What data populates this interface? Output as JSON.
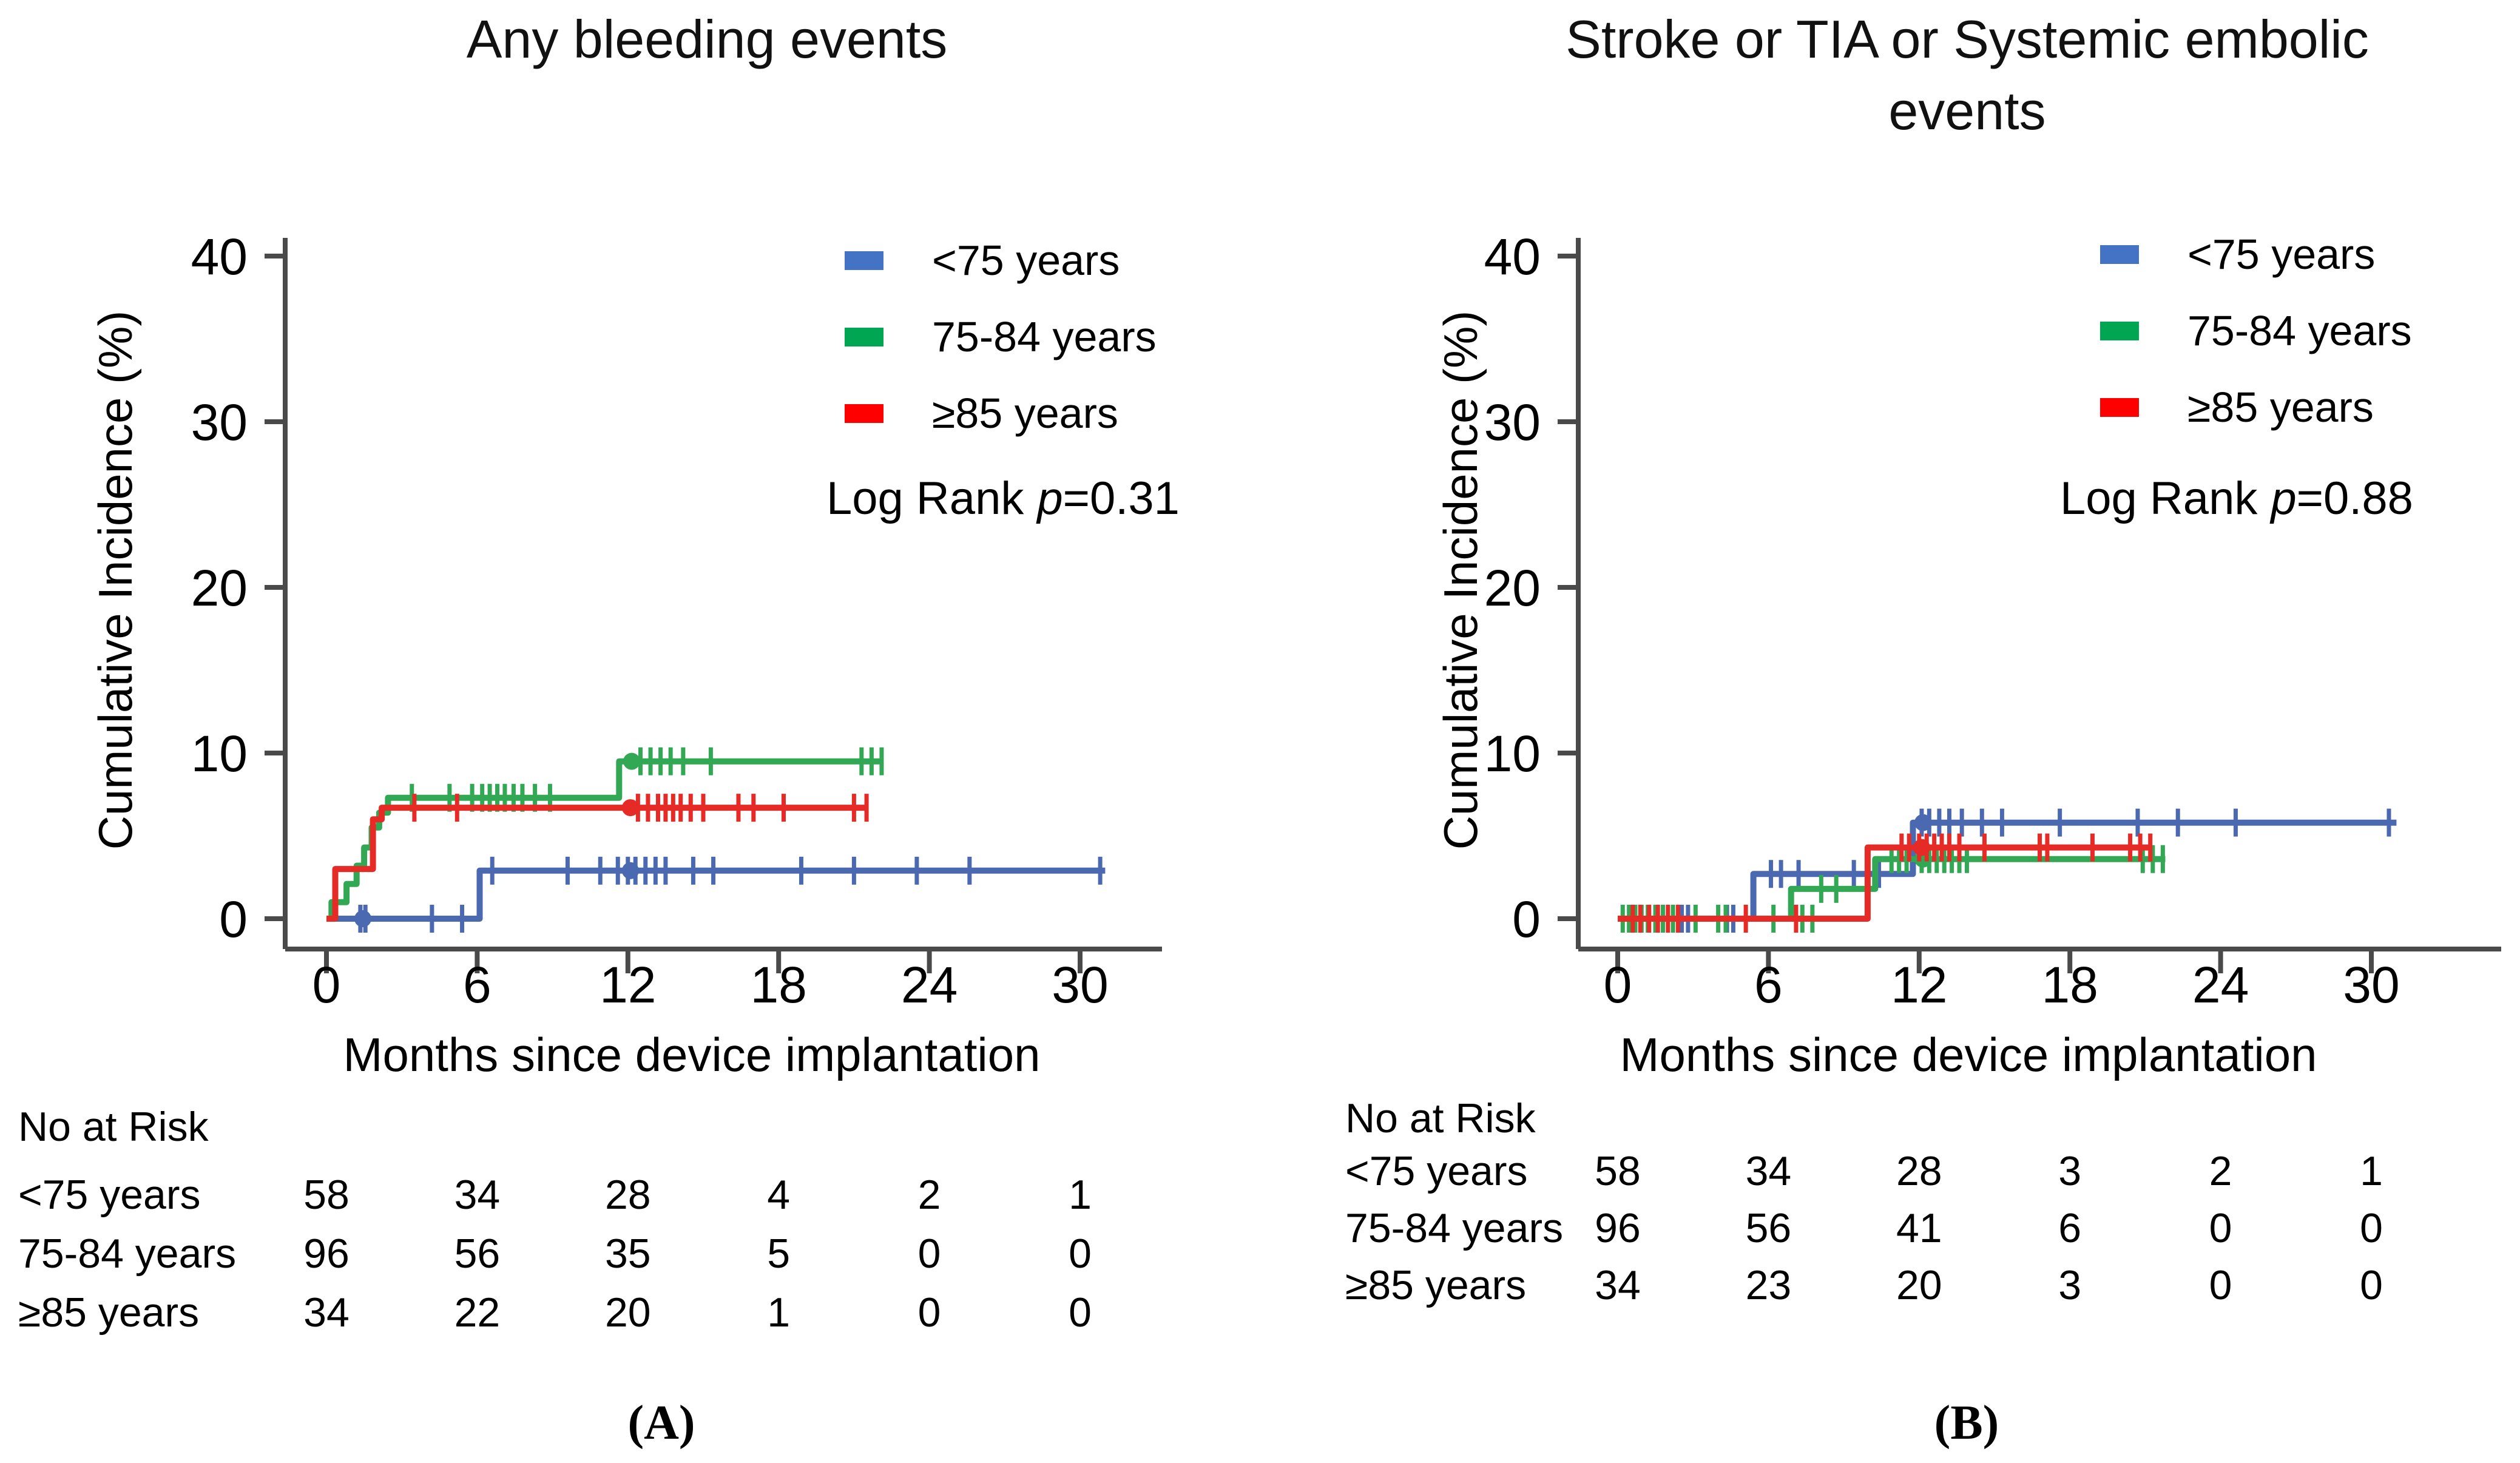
{
  "chart_data": {
    "type": "line",
    "subtype": "kaplan_meier_cumulative_incidence_step",
    "grid": false,
    "panels": [
      {
        "panel_label": "(A)",
        "title_lines": [
          "Any bleeding events"
        ],
        "xlabel": "Months since device implantation",
        "ylabel": "Cumulative Incidence (%)",
        "x_ticks": [
          0,
          6,
          12,
          18,
          24,
          30
        ],
        "y_ticks": [
          0,
          10,
          20,
          30,
          40
        ],
        "xlim": [
          0,
          33
        ],
        "ylim": [
          0,
          43
        ],
        "legend_position": "top-right-inside",
        "log_rank_label": "Log Rank",
        "log_rank_p_symbol": "p",
        "log_rank_value": "=0.31",
        "series": [
          {
            "name": "<75 years",
            "color": "#4b69b1",
            "swatch_color": "#4472C4",
            "steps": [
              [
                0,
                0
              ],
              [
                6.1,
                0
              ],
              [
                6.1,
                2.9
              ],
              [
                31.0,
                2.9
              ]
            ],
            "censors": [
              [
                1.35,
                0
              ],
              [
                1.55,
                0
              ],
              [
                4.2,
                0
              ],
              [
                5.4,
                0
              ],
              [
                6.6,
                2.9
              ],
              [
                9.6,
                2.9
              ],
              [
                10.9,
                2.9
              ],
              [
                11.6,
                2.9
              ],
              [
                12.0,
                2.9
              ],
              [
                12.3,
                2.9
              ],
              [
                12.7,
                2.9
              ],
              [
                13.1,
                2.9
              ],
              [
                13.5,
                2.9
              ],
              [
                14.6,
                2.9
              ],
              [
                15.4,
                2.9
              ],
              [
                18.9,
                2.9
              ],
              [
                21.0,
                2.9
              ],
              [
                23.5,
                2.9
              ],
              [
                25.6,
                2.9
              ],
              [
                30.8,
                2.9
              ]
            ],
            "markers": [
              [
                1.45,
                0
              ],
              [
                12.1,
                2.9
              ]
            ]
          },
          {
            "name": "75-84 years",
            "color": "#33a854",
            "swatch_color": "#00A651",
            "steps": [
              [
                0,
                0
              ],
              [
                0.2,
                0
              ],
              [
                0.2,
                1.0
              ],
              [
                0.8,
                1.0
              ],
              [
                0.8,
                2.1
              ],
              [
                1.2,
                2.1
              ],
              [
                1.2,
                3.2
              ],
              [
                1.5,
                3.2
              ],
              [
                1.5,
                4.3
              ],
              [
                1.8,
                4.3
              ],
              [
                1.8,
                5.5
              ],
              [
                2.1,
                5.5
              ],
              [
                2.1,
                6.4
              ],
              [
                2.45,
                6.4
              ],
              [
                2.45,
                7.3
              ],
              [
                11.65,
                7.3
              ],
              [
                11.65,
                9.5
              ],
              [
                22.1,
                9.5
              ]
            ],
            "censors": [
              [
                3.4,
                7.3
              ],
              [
                4.9,
                7.3
              ],
              [
                5.8,
                7.3
              ],
              [
                6.2,
                7.3
              ],
              [
                6.5,
                7.3
              ],
              [
                6.8,
                7.3
              ],
              [
                7.1,
                7.3
              ],
              [
                7.45,
                7.3
              ],
              [
                7.8,
                7.3
              ],
              [
                8.3,
                7.3
              ],
              [
                8.9,
                7.3
              ],
              [
                12.5,
                9.5
              ],
              [
                12.9,
                9.5
              ],
              [
                13.3,
                9.5
              ],
              [
                13.7,
                9.5
              ],
              [
                14.2,
                9.5
              ],
              [
                15.3,
                9.5
              ],
              [
                21.3,
                9.5
              ],
              [
                21.7,
                9.5
              ],
              [
                22.1,
                9.5
              ]
            ],
            "markers": [
              [
                12.15,
                9.5
              ]
            ]
          },
          {
            "name": "≥85 years",
            "color": "#e62a25",
            "swatch_color": "#FF0000",
            "steps": [
              [
                0,
                0
              ],
              [
                0.35,
                0
              ],
              [
                0.35,
                3.0
              ],
              [
                1.85,
                3.0
              ],
              [
                1.85,
                6.0
              ],
              [
                2.2,
                6.0
              ],
              [
                2.2,
                6.7
              ],
              [
                21.5,
                6.7
              ]
            ],
            "censors": [
              [
                3.5,
                6.7
              ],
              [
                5.2,
                6.7
              ],
              [
                12.4,
                6.7
              ],
              [
                12.8,
                6.7
              ],
              [
                13.2,
                6.7
              ],
              [
                13.5,
                6.7
              ],
              [
                13.8,
                6.7
              ],
              [
                14.1,
                6.7
              ],
              [
                14.5,
                6.7
              ],
              [
                15.0,
                6.7
              ],
              [
                16.4,
                6.7
              ],
              [
                17.0,
                6.7
              ],
              [
                18.2,
                6.7
              ],
              [
                21.0,
                6.7
              ],
              [
                21.5,
                6.7
              ]
            ],
            "markers": [
              [
                12.1,
                6.7
              ]
            ]
          }
        ],
        "risk_table": {
          "title": "No at Risk",
          "time_points": [
            0,
            6,
            12,
            18,
            24,
            30
          ],
          "rows": [
            {
              "label": "<75 years",
              "values": [
                "58",
                "34",
                "28",
                "4",
                "2",
                "1"
              ]
            },
            {
              "label": "75-84 years",
              "values": [
                "96",
                "56",
                "35",
                "5",
                "0",
                "0"
              ]
            },
            {
              "label": "≥85 years",
              "values": [
                "34",
                "22",
                "20",
                "1",
                "0",
                "0"
              ]
            }
          ]
        }
      },
      {
        "panel_label": "(B)",
        "title_lines": [
          "Stroke or TIA or Systemic embolic",
          "events"
        ],
        "xlabel": "Months since device implantation",
        "ylabel": "Cumulative Incidence (%)",
        "x_ticks": [
          0,
          6,
          12,
          18,
          24,
          30
        ],
        "y_ticks": [
          0,
          10,
          20,
          30,
          40
        ],
        "xlim": [
          0,
          33
        ],
        "ylim": [
          0,
          43
        ],
        "legend_position": "top-right-inside",
        "log_rank_label": "Log Rank",
        "log_rank_p_symbol": "p",
        "log_rank_value": "=0.88",
        "series": [
          {
            "name": "<75 years",
            "color": "#4b69b1",
            "swatch_color": "#4472C4",
            "steps": [
              [
                0,
                0
              ],
              [
                5.4,
                0
              ],
              [
                5.4,
                2.7
              ],
              [
                11.75,
                2.7
              ],
              [
                11.75,
                5.8
              ],
              [
                31.0,
                5.8
              ]
            ],
            "censors": [
              [
                2.55,
                0
              ],
              [
                2.8,
                0
              ],
              [
                4.35,
                0
              ],
              [
                4.6,
                0
              ],
              [
                6.1,
                2.7
              ],
              [
                6.5,
                2.7
              ],
              [
                7.2,
                2.7
              ],
              [
                9.4,
                2.7
              ],
              [
                10.4,
                2.7
              ],
              [
                12.1,
                5.8
              ],
              [
                12.4,
                5.8
              ],
              [
                12.8,
                5.8
              ],
              [
                13.2,
                5.8
              ],
              [
                13.7,
                5.8
              ],
              [
                14.5,
                5.8
              ],
              [
                15.3,
                5.8
              ],
              [
                17.6,
                5.8
              ],
              [
                20.7,
                5.8
              ],
              [
                22.3,
                5.8
              ],
              [
                24.6,
                5.8
              ],
              [
                30.7,
                5.8
              ]
            ],
            "markers": [
              [
                12.15,
                5.8
              ]
            ]
          },
          {
            "name": "75-84 years",
            "color": "#33a854",
            "swatch_color": "#00A651",
            "steps": [
              [
                0,
                0
              ],
              [
                6.9,
                0
              ],
              [
                6.9,
                1.8
              ],
              [
                10.25,
                1.8
              ],
              [
                10.25,
                3.6
              ],
              [
                21.8,
                3.6
              ]
            ],
            "censors": [
              [
                0.2,
                0
              ],
              [
                0.45,
                0
              ],
              [
                0.7,
                0
              ],
              [
                0.95,
                0
              ],
              [
                1.2,
                0
              ],
              [
                1.5,
                0
              ],
              [
                1.8,
                0
              ],
              [
                2.2,
                0
              ],
              [
                3.1,
                0
              ],
              [
                4.0,
                0
              ],
              [
                4.3,
                0
              ],
              [
                6.2,
                0
              ],
              [
                7.35,
                0
              ],
              [
                7.75,
                0
              ],
              [
                8.1,
                1.8
              ],
              [
                8.7,
                1.8
              ],
              [
                10.9,
                3.6
              ],
              [
                11.2,
                3.6
              ],
              [
                11.5,
                3.6
              ],
              [
                12.1,
                3.6
              ],
              [
                12.4,
                3.6
              ],
              [
                12.7,
                3.6
              ],
              [
                13.0,
                3.6
              ],
              [
                13.3,
                3.6
              ],
              [
                13.6,
                3.6
              ],
              [
                13.9,
                3.6
              ],
              [
                20.9,
                3.6
              ],
              [
                21.3,
                3.6
              ],
              [
                21.7,
                3.6
              ]
            ],
            "markers": [
              [
                12.15,
                3.6
              ]
            ]
          },
          {
            "name": "≥85 years",
            "color": "#e62a25",
            "swatch_color": "#FF0000",
            "steps": [
              [
                0,
                0
              ],
              [
                9.95,
                0
              ],
              [
                9.95,
                4.3
              ],
              [
                21.2,
                4.3
              ]
            ],
            "censors": [
              [
                0.6,
                0
              ],
              [
                0.9,
                0
              ],
              [
                1.25,
                0
              ],
              [
                1.6,
                0
              ],
              [
                2.0,
                0
              ],
              [
                2.4,
                0
              ],
              [
                5.1,
                0
              ],
              [
                7.1,
                0
              ],
              [
                11.3,
                4.3
              ],
              [
                11.6,
                4.3
              ],
              [
                12.0,
                4.3
              ],
              [
                12.3,
                4.3
              ],
              [
                12.6,
                4.3
              ],
              [
                12.9,
                4.3
              ],
              [
                13.2,
                4.3
              ],
              [
                13.6,
                4.3
              ],
              [
                14.6,
                4.3
              ],
              [
                16.8,
                4.3
              ],
              [
                17.1,
                4.3
              ],
              [
                18.9,
                4.3
              ],
              [
                20.4,
                4.3
              ],
              [
                20.8,
                4.3
              ],
              [
                21.2,
                4.3
              ]
            ],
            "markers": [
              [
                12.1,
                4.3
              ]
            ]
          }
        ],
        "risk_table": {
          "title": "No at Risk",
          "time_points": [
            0,
            6,
            12,
            18,
            24,
            30
          ],
          "rows": [
            {
              "label": "<75 years",
              "values": [
                "58",
                "34",
                "28",
                "3",
                "2",
                "1"
              ]
            },
            {
              "label": "75-84 years",
              "values": [
                "96",
                "56",
                "41",
                "6",
                "0",
                "0"
              ]
            },
            {
              "label": "≥85 years",
              "values": [
                "34",
                "23",
                "20",
                "3",
                "0",
                "0"
              ]
            }
          ]
        }
      }
    ],
    "colors": {
      "axis": "#4a4a4a",
      "text": "#000000"
    }
  }
}
